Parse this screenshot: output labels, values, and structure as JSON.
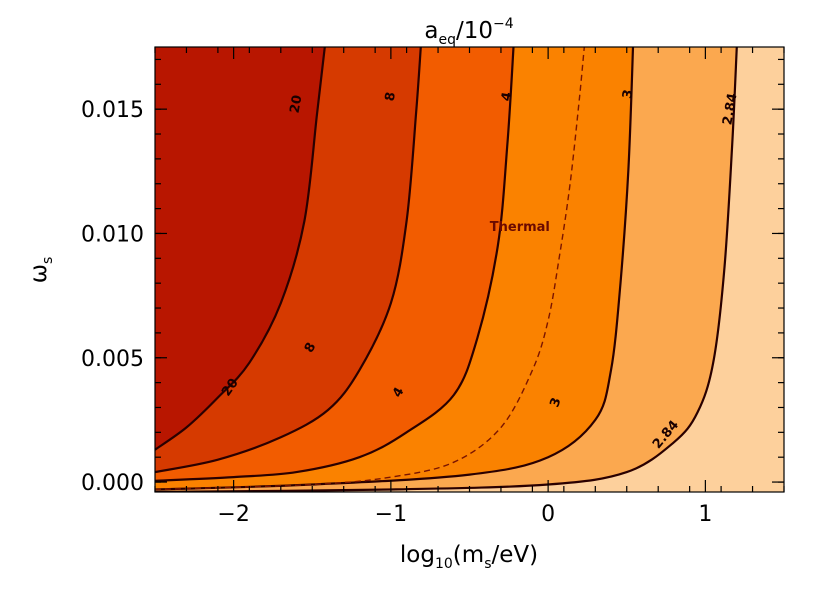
{
  "chart_data": {
    "type": "contour",
    "title_text": "a",
    "title_sub": "eq",
    "title_rest": "/10",
    "title_sup": "−4",
    "xlabel_pre": "log",
    "xlabel_sub1": "10",
    "xlabel_mid": "(m",
    "xlabel_sub2": "s",
    "xlabel_post": "/eV)",
    "ylabel_main": "ω",
    "ylabel_sub": "s",
    "xlim": [
      -2.5,
      1.5
    ],
    "ylim": [
      -0.0004,
      0.0175
    ],
    "x_ticks": [
      {
        "value": -2,
        "label": "−2"
      },
      {
        "value": -1,
        "label": "−1"
      },
      {
        "value": 0,
        "label": "0"
      },
      {
        "value": 1,
        "label": "1"
      }
    ],
    "y_ticks": [
      {
        "value": 0.0,
        "label": "0.000"
      },
      {
        "value": 0.005,
        "label": "0.005"
      },
      {
        "value": 0.01,
        "label": "0.010"
      },
      {
        "value": 0.015,
        "label": "0.015"
      }
    ],
    "x_minor_step": 0.2,
    "y_minor_step": 0.001,
    "contour_levels": [
      {
        "level": "20",
        "fill_right_color": "#d63a00",
        "curve": [
          [
            -2.5,
            0.0013
          ],
          [
            -2.3,
            0.0022
          ],
          [
            -2.1,
            0.0034
          ],
          [
            -1.9,
            0.0048
          ],
          [
            -1.7,
            0.0072
          ],
          [
            -1.55,
            0.0105
          ],
          [
            -1.47,
            0.0148
          ],
          [
            -1.42,
            0.0175
          ]
        ]
      },
      {
        "level": "8",
        "fill_right_color": "#f25c00",
        "curve": [
          [
            -2.5,
            0.0004
          ],
          [
            -2.1,
            0.0009
          ],
          [
            -1.7,
            0.0018
          ],
          [
            -1.4,
            0.0029
          ],
          [
            -1.2,
            0.0045
          ],
          [
            -1.0,
            0.0072
          ],
          [
            -0.9,
            0.0105
          ],
          [
            -0.84,
            0.0148
          ],
          [
            -0.81,
            0.0175
          ]
        ]
      },
      {
        "level": "4",
        "fill_right_color": "#fa8200",
        "curve": [
          [
            -2.5,
            5e-05
          ],
          [
            -2.0,
            0.0002
          ],
          [
            -1.6,
            0.0004
          ],
          [
            -1.2,
            0.001
          ],
          [
            -0.9,
            0.002
          ],
          [
            -0.6,
            0.0035
          ],
          [
            -0.45,
            0.0058
          ],
          [
            -0.32,
            0.0095
          ],
          [
            -0.26,
            0.0135
          ],
          [
            -0.22,
            0.0175
          ]
        ]
      },
      {
        "level": "3",
        "fill_right_color": "#fba84f",
        "curve": [
          [
            -2.5,
            -0.0003
          ],
          [
            -1.5,
            -0.0001
          ],
          [
            -0.5,
            0.0003
          ],
          [
            0.0,
            0.001
          ],
          [
            0.3,
            0.0025
          ],
          [
            0.4,
            0.0045
          ],
          [
            0.46,
            0.008
          ],
          [
            0.51,
            0.0125
          ],
          [
            0.54,
            0.0175
          ]
        ]
      },
      {
        "level": "2.84",
        "fill_right_color": "#fdd09c",
        "curve": [
          [
            -2.5,
            -0.0004
          ],
          [
            -1.0,
            -0.0003
          ],
          [
            0.0,
            -0.0001
          ],
          [
            0.5,
            0.0004
          ],
          [
            0.8,
            0.0016
          ],
          [
            0.95,
            0.0028
          ],
          [
            1.05,
            0.0048
          ],
          [
            1.12,
            0.0085
          ],
          [
            1.17,
            0.0135
          ],
          [
            1.2,
            0.0175
          ]
        ]
      }
    ],
    "leftmost_fill_color": "#b81600",
    "thermal_curve": {
      "label": "Thermal",
      "curve": [
        [
          -2.5,
          -0.0003
        ],
        [
          -1.5,
          -0.0001
        ],
        [
          -1.0,
          0.0002
        ],
        [
          -0.6,
          0.0008
        ],
        [
          -0.3,
          0.0022
        ],
        [
          -0.1,
          0.0045
        ],
        [
          0.0,
          0.0065
        ],
        [
          0.07,
          0.009
        ],
        [
          0.14,
          0.012
        ],
        [
          0.2,
          0.0155
        ],
        [
          0.23,
          0.0175
        ]
      ]
    },
    "contour_labels": [
      {
        "text": "20",
        "x": -1.6,
        "y": 0.0152,
        "angle": -80
      },
      {
        "text": "20",
        "x": -2.02,
        "y": 0.0038,
        "angle": -55
      },
      {
        "text": "8",
        "x": -1.0,
        "y": 0.0155,
        "angle": -80
      },
      {
        "text": "8",
        "x": -1.51,
        "y": 0.0054,
        "angle": -60
      },
      {
        "text": "4",
        "x": -0.26,
        "y": 0.0155,
        "angle": -80
      },
      {
        "text": "4",
        "x": -0.95,
        "y": 0.0036,
        "angle": -60
      },
      {
        "text": "3",
        "x": 0.51,
        "y": 0.0156,
        "angle": -80
      },
      {
        "text": "3",
        "x": 0.05,
        "y": 0.0032,
        "angle": -70
      },
      {
        "text": "2.84",
        "x": 1.16,
        "y": 0.015,
        "angle": -80
      },
      {
        "text": "2.84",
        "x": 0.75,
        "y": 0.0019,
        "angle": -50
      }
    ],
    "thermal_label_pos": {
      "x": -0.18,
      "y": 0.0101
    },
    "line_color": "#2a0000"
  }
}
